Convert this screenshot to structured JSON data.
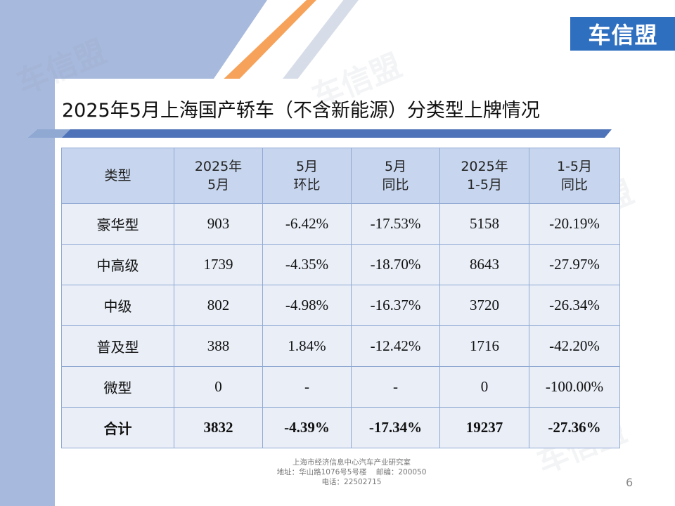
{
  "logo_text": "车信盟",
  "watermark_text": "车信盟",
  "title": "2025年5月上海国产轿车（不含新能源）分类型上牌情况",
  "table": {
    "headers": [
      [
        "类型"
      ],
      [
        "2025年",
        "5月"
      ],
      [
        "5月",
        "环比"
      ],
      [
        "5月",
        "同比"
      ],
      [
        "2025年",
        "1-5月"
      ],
      [
        "1-5月",
        "同比"
      ]
    ],
    "rows": [
      [
        "豪华型",
        "903",
        "-6.42%",
        "-17.53%",
        "5158",
        "-20.19%"
      ],
      [
        "中高级",
        "1739",
        "-4.35%",
        "-18.70%",
        "8643",
        "-27.97%"
      ],
      [
        "中级",
        "802",
        "-4.98%",
        "-16.37%",
        "3720",
        "-26.34%"
      ],
      [
        "普及型",
        "388",
        "1.84%",
        "-12.42%",
        "1716",
        "-42.20%"
      ],
      [
        "微型",
        "0",
        "-",
        "-",
        "0",
        "-100.00%"
      ],
      [
        "合计",
        "3832",
        "-4.39%",
        "-17.34%",
        "19237",
        "-27.36%"
      ]
    ]
  },
  "footer": {
    "line1": "上海市经济信息中心汽车产业研究室",
    "line2": "地址：华山路1076号5号楼    邮编：200050",
    "line3": "电话：22502715"
  },
  "page_number": "6",
  "colors": {
    "header_bg": "#c7d6ee",
    "cell_bg": "#e9eef7",
    "border": "#8fa9d3",
    "logo_bg": "#2f6fc0",
    "accent_orange": "#f6a25a"
  }
}
